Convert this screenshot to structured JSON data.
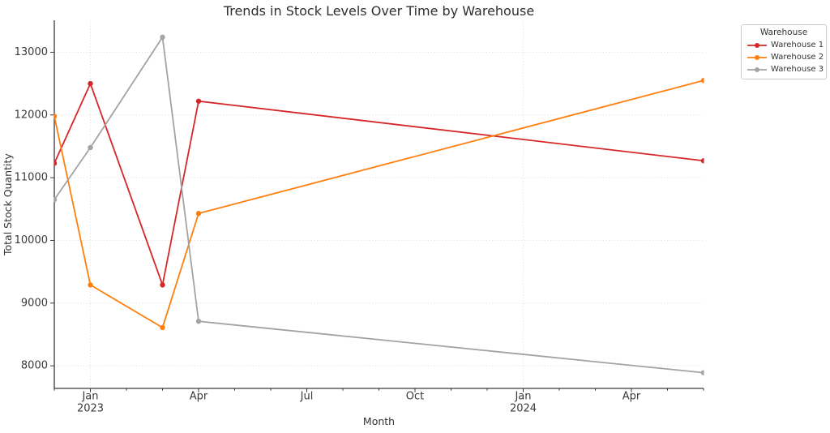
{
  "chart_data": {
    "type": "line",
    "title": "Trends in Stock Levels Over Time by Warehouse",
    "xlabel": "Month",
    "ylabel": "Total Stock Quantity",
    "x": [
      "2022-12",
      "2023-01",
      "2023-03",
      "2023-04",
      "2024-06"
    ],
    "series": [
      {
        "name": "Warehouse 1",
        "color": "#d62728",
        "values": [
          11230,
          12500,
          9290,
          12220,
          11270
        ]
      },
      {
        "name": "Warehouse 2",
        "color": "#ff7f0e",
        "values": [
          11980,
          9290,
          8610,
          10430,
          12550
        ]
      },
      {
        "name": "Warehouse 3",
        "color": "#a3a3a3",
        "values": [
          10650,
          11480,
          13240,
          8710,
          7890
        ]
      }
    ],
    "xlim": [
      "2022-12",
      "2024-06"
    ],
    "ylim": [
      7640,
      13510
    ],
    "yticks": [
      8000,
      9000,
      10000,
      11000,
      12000,
      13000
    ],
    "xticks": [
      {
        "month": "2023-01",
        "label": "Jan",
        "year": "2023"
      },
      {
        "month": "2023-04",
        "label": "Apr"
      },
      {
        "month": "2023-07",
        "label": "Jul"
      },
      {
        "month": "2023-10",
        "label": "Oct"
      },
      {
        "month": "2024-01",
        "label": "Jan",
        "year": "2024"
      },
      {
        "month": "2024-04",
        "label": "Apr"
      }
    ],
    "grid_x_months": [
      "2023-01",
      "2024-01"
    ],
    "grid": true,
    "legend": {
      "title": "Warehouse",
      "position": "outside-upper-right"
    },
    "line_width": 1.8,
    "marker_radius": 3.2,
    "grid_color": "#dddddd",
    "text_color": "#333333"
  }
}
